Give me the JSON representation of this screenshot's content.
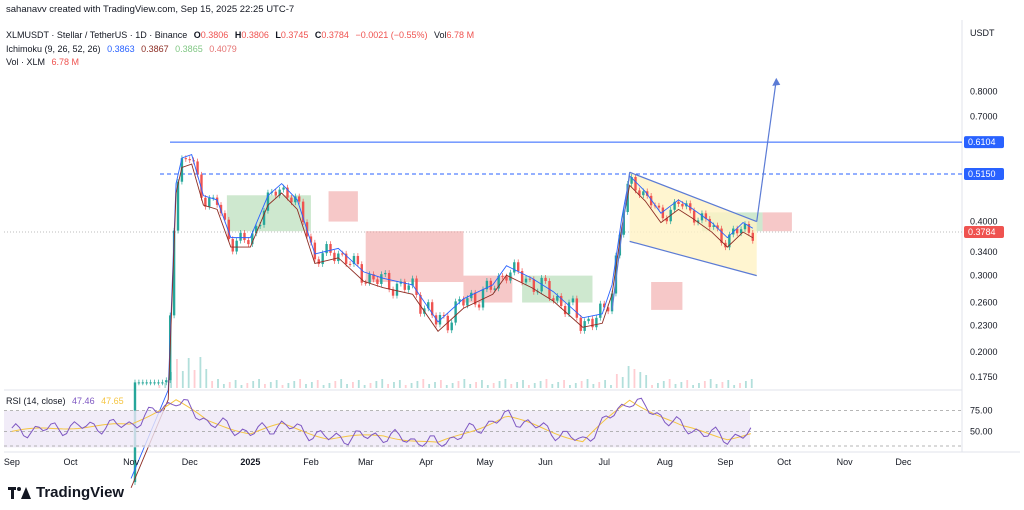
{
  "header": {
    "attribution": "sahanavv created with TradingView.com, Sep 15, 2025 22:25 UTC-7",
    "symbol": "XLMUSDT · Stellar / TetherUS · 1D · Binance",
    "open_label": "O",
    "open": "0.3806",
    "high_label": "H",
    "high": "0.3806",
    "low_label": "L",
    "low": "0.3745",
    "close_label": "C",
    "close": "0.3784",
    "change": "−0.0021 (−0.55%)",
    "vol_label": "Vol",
    "vol": "6.78 M",
    "ichimoku_label": "Ichimoku (9, 26, 52, 26)",
    "ichimoku_values": [
      "0.3863",
      "0.3867",
      "0.3865",
      "0.4079"
    ],
    "vol_xlm_label": "Vol · XLM",
    "vol_xlm": "6.78 M",
    "rsi_label": "RSI (14, close)",
    "rsi_values": [
      "47.46",
      "47.65"
    ]
  },
  "colors": {
    "up": "#26a69a",
    "down": "#ef5350",
    "accent": "#2962ff",
    "kijun": "#8d2d24",
    "tenkan": "#2962ff",
    "cloud_green": "#a5d6a7",
    "cloud_red": "#ef9a9a",
    "rsi_line": "#7e57c2",
    "rsi_ma": "#f5c542",
    "rsi_band": "#ede7f6",
    "flag": "#fff3c4"
  },
  "brand": {
    "name": "TradingView"
  },
  "chart_data": {
    "type": "candlestick",
    "currency": "USDT",
    "y_ticks": [
      "0.8000",
      "0.7000",
      "0.6104",
      "0.5150",
      "0.4000",
      "0.3784",
      "0.3400",
      "0.3000",
      "0.2600",
      "0.2300",
      "0.2000",
      "0.1750"
    ],
    "price_labels": [
      {
        "value": 0.6104,
        "text": "0.6104"
      },
      {
        "value": 0.515,
        "text": "0.5150"
      },
      {
        "value": 0.3784,
        "text": "0.3784"
      }
    ],
    "x_ticks": [
      "Sep",
      "Oct",
      "Nov",
      "Dec",
      "2025",
      "Feb",
      "Mar",
      "Apr",
      "May",
      "Jun",
      "Jul",
      "Aug",
      "Sep",
      "Oct",
      "Nov",
      "Dec"
    ],
    "horizontal_levels": [
      0.6104,
      0.515
    ],
    "price_path": [
      [
        "2024-11-01",
        0.1
      ],
      [
        "2024-11-20",
        0.16
      ],
      [
        "2024-11-24",
        0.48
      ],
      [
        "2024-11-27",
        0.55
      ],
      [
        "2024-12-02",
        0.56
      ],
      [
        "2024-12-08",
        0.45
      ],
      [
        "2024-12-15",
        0.44
      ],
      [
        "2024-12-22",
        0.36
      ],
      [
        "2025-01-01",
        0.36
      ],
      [
        "2025-01-10",
        0.45
      ],
      [
        "2025-01-17",
        0.48
      ],
      [
        "2025-01-25",
        0.44
      ],
      [
        "2025-02-03",
        0.33
      ],
      [
        "2025-02-15",
        0.34
      ],
      [
        "2025-02-28",
        0.3
      ],
      [
        "2025-03-10",
        0.29
      ],
      [
        "2025-03-25",
        0.28
      ],
      [
        "2025-04-07",
        0.23
      ],
      [
        "2025-04-20",
        0.26
      ],
      [
        "2025-05-05",
        0.28
      ],
      [
        "2025-05-12",
        0.31
      ],
      [
        "2025-05-25",
        0.29
      ],
      [
        "2025-06-05",
        0.27
      ],
      [
        "2025-06-20",
        0.235
      ],
      [
        "2025-06-30",
        0.24
      ],
      [
        "2025-07-05",
        0.28
      ],
      [
        "2025-07-10",
        0.4
      ],
      [
        "2025-07-14",
        0.5
      ],
      [
        "2025-07-22",
        0.46
      ],
      [
        "2025-07-30",
        0.41
      ],
      [
        "2025-08-08",
        0.44
      ],
      [
        "2025-08-15",
        0.42
      ],
      [
        "2025-08-25",
        0.39
      ],
      [
        "2025-09-02",
        0.36
      ],
      [
        "2025-09-10",
        0.39
      ],
      [
        "2025-09-15",
        0.3784
      ]
    ],
    "flag_channel": {
      "upper": [
        [
          "2025-07-14",
          0.52
        ],
        [
          "2025-09-17",
          0.4
        ]
      ],
      "lower": [
        [
          "2025-07-14",
          0.36
        ],
        [
          "2025-09-17",
          0.3
        ]
      ],
      "pole": [
        [
          "2025-07-05",
          0.25
        ],
        [
          "2025-07-14",
          0.52
        ]
      ],
      "target": [
        [
          "2025-09-17",
          0.4
        ],
        [
          "2025-09-27",
          0.85
        ]
      ]
    },
    "rsi_ticks": [
      "75.00",
      "50.00"
    ],
    "rsi_path": [
      [
        "2024-09-01",
        50
      ],
      [
        "2024-10-01",
        55
      ],
      [
        "2024-11-01",
        58
      ],
      [
        "2024-11-24",
        88
      ],
      [
        "2024-12-10",
        62
      ],
      [
        "2025-01-01",
        48
      ],
      [
        "2025-01-17",
        58
      ],
      [
        "2025-02-10",
        42
      ],
      [
        "2025-03-10",
        45
      ],
      [
        "2025-04-07",
        35
      ],
      [
        "2025-05-12",
        68
      ],
      [
        "2025-06-20",
        38
      ],
      [
        "2025-07-14",
        88
      ],
      [
        "2025-08-10",
        55
      ],
      [
        "2025-09-02",
        42
      ],
      [
        "2025-09-15",
        47.46
      ]
    ]
  }
}
